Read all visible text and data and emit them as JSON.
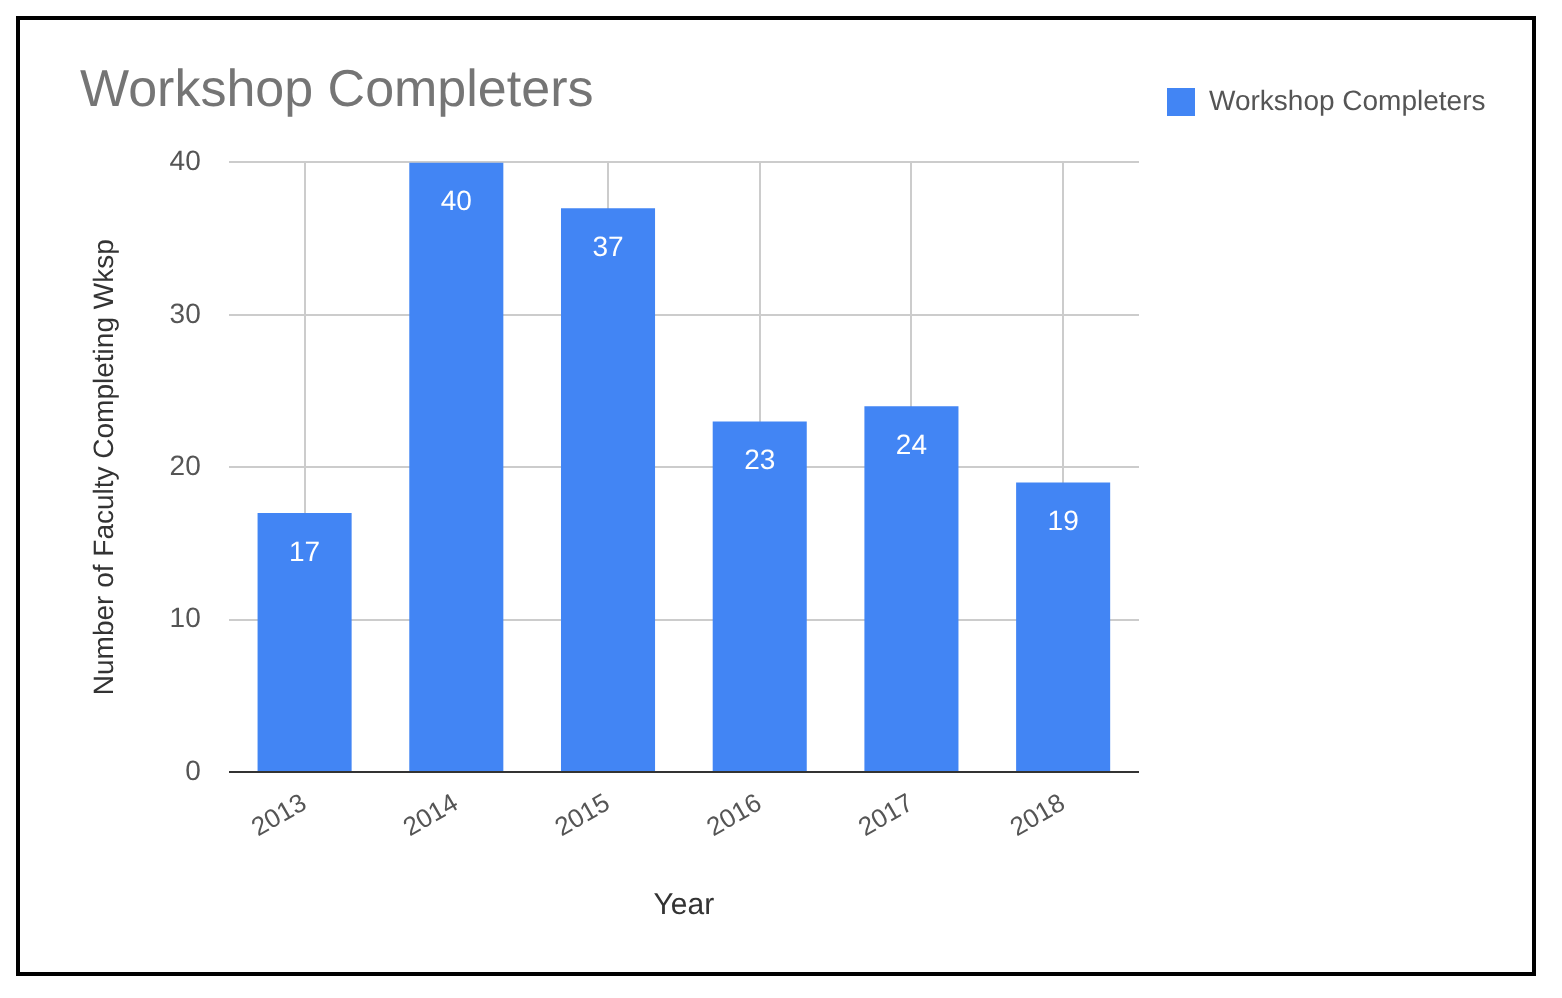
{
  "chart_data": {
    "type": "bar",
    "title": "Workshop Completers",
    "xlabel": "Year",
    "ylabel": "Number of Faculty Completing Wksp",
    "categories": [
      "2013",
      "2014",
      "2015",
      "2016",
      "2017",
      "2018"
    ],
    "series": [
      {
        "name": "Workshop Completers",
        "color": "#4285f4",
        "values": [
          17,
          40,
          37,
          23,
          24,
          19
        ]
      }
    ],
    "ylim": [
      0,
      40
    ],
    "yticks": [
      0,
      10,
      20,
      30,
      40
    ],
    "grid": true,
    "legend": "top right",
    "data_labels": true
  }
}
